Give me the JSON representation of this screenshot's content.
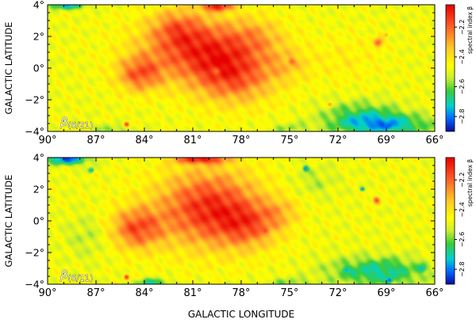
{
  "chart_data": [
    {
      "type": "heatmap",
      "panel_label": "β",
      "panel_label_sub": "(6/21)",
      "xlabel": "",
      "ylabel": "GALACTIC LATITUDE",
      "xlim": [
        90,
        66
      ],
      "ylim": [
        -4,
        4
      ],
      "x_ticks": [
        90,
        87,
        84,
        81,
        78,
        75,
        72,
        69,
        66
      ],
      "y_ticks": [
        4,
        2,
        0,
        -2,
        -4
      ],
      "x_tick_labels": [
        "90°",
        "87°",
        "84°",
        "81°",
        "78°",
        "75°",
        "72°",
        "69°",
        "66°"
      ],
      "y_tick_labels": [
        "4°",
        "2°",
        "0°",
        "−2°",
        "−4°"
      ],
      "colorbar": {
        "label": "spectral index β",
        "range": [
          -2.9,
          -2.05
        ],
        "ticks": [
          -2.2,
          -2.4,
          -2.6,
          -2.8
        ],
        "tick_labels": [
          "−2.2",
          "−2.4",
          "−2.6",
          "−2.8"
        ]
      },
      "blobs": [
        {
          "l": 80.5,
          "b": 1.2,
          "sl": 3.6,
          "sb": 1.9,
          "a": 0.38
        },
        {
          "l": 78.5,
          "b": -0.6,
          "sl": 2.6,
          "sb": 1.7,
          "a": 0.3
        },
        {
          "l": 84.3,
          "b": -0.4,
          "sl": 1.4,
          "sb": 1.1,
          "a": 0.3
        },
        {
          "l": 82.0,
          "b": 2.6,
          "sl": 1.6,
          "sb": 1.2,
          "a": 0.18
        },
        {
          "l": 77.0,
          "b": 2.0,
          "sl": 1.8,
          "sb": 1.2,
          "a": 0.12
        },
        {
          "l": 75.0,
          "b": 0.2,
          "sl": 1.4,
          "sb": 1.0,
          "a": 0.1
        },
        {
          "l": 79.5,
          "b": 3.9,
          "sl": 1.0,
          "sb": 0.3,
          "a": 0.4
        },
        {
          "l": 71.5,
          "b": 0.6,
          "sl": 2.2,
          "sb": 1.6,
          "a": 0.06
        },
        {
          "l": 69.2,
          "b": -3.6,
          "sl": 3.0,
          "sb": 0.7,
          "a": -0.3
        },
        {
          "l": 70.5,
          "b": -2.9,
          "sl": 2.4,
          "sb": 0.9,
          "a": -0.16
        },
        {
          "l": 88.8,
          "b": 3.95,
          "sl": 1.2,
          "sb": 0.25,
          "a": -0.3
        },
        {
          "l": 86.0,
          "b": -3.9,
          "sl": 1.2,
          "sb": 0.3,
          "a": -0.12
        },
        {
          "l": 75.0,
          "b": -3.8,
          "sl": 1.2,
          "sb": 0.3,
          "a": -0.1
        }
      ],
      "spots": [
        {
          "l": 69.5,
          "b": 1.6,
          "r": 0.35,
          "v": -2.15
        },
        {
          "l": 85.1,
          "b": -3.55,
          "r": 0.2,
          "v": -2.12
        },
        {
          "l": 74.9,
          "b": 0.4,
          "r": 0.25,
          "v": -2.2
        },
        {
          "l": 79.5,
          "b": -0.2,
          "r": 0.25,
          "v": -2.18
        },
        {
          "l": 68.8,
          "b": -3.65,
          "r": 0.22,
          "v": -2.86
        },
        {
          "l": 72.5,
          "b": -2.3,
          "r": 0.15,
          "v": -2.22
        },
        {
          "l": 69.0,
          "b": 2.1,
          "r": 0.15,
          "v": -2.28
        }
      ]
    },
    {
      "type": "heatmap",
      "panel_label": "β",
      "panel_label_sub": "(6/11)",
      "xlabel": "GALACTIC LONGITUDE",
      "ylabel": "GALACTIC LATITUDE",
      "xlim": [
        90,
        66
      ],
      "ylim": [
        -4,
        4
      ],
      "x_ticks": [
        90,
        87,
        84,
        81,
        78,
        75,
        72,
        69,
        66
      ],
      "y_ticks": [
        4,
        2,
        0,
        -2,
        -4
      ],
      "x_tick_labels": [
        "90°",
        "87°",
        "84°",
        "81°",
        "78°",
        "75°",
        "72°",
        "69°",
        "66°"
      ],
      "y_tick_labels": [
        "4°",
        "2°",
        "0°",
        "−2°",
        "−4°"
      ],
      "colorbar": {
        "label": "spectral index β",
        "range": [
          -2.9,
          -2.05
        ],
        "ticks": [
          -2.2,
          -2.4,
          -2.6,
          -2.8
        ],
        "tick_labels": [
          "−2.2",
          "−2.4",
          "−2.6",
          "−2.8"
        ]
      },
      "blobs": [
        {
          "l": 80.0,
          "b": 0.8,
          "sl": 3.2,
          "sb": 2.4,
          "a": 0.42
        },
        {
          "l": 84.5,
          "b": -0.5,
          "sl": 1.6,
          "sb": 1.3,
          "a": 0.33
        },
        {
          "l": 77.5,
          "b": -0.3,
          "sl": 1.8,
          "sb": 1.4,
          "a": 0.22
        },
        {
          "l": 80.5,
          "b": 3.9,
          "sl": 1.6,
          "sb": 0.3,
          "a": 0.4
        },
        {
          "l": 75.5,
          "b": 0.5,
          "sl": 1.2,
          "sb": 1.0,
          "a": 0.12
        },
        {
          "l": 69.5,
          "b": -3.2,
          "sl": 3.0,
          "sb": 0.9,
          "a": -0.26
        },
        {
          "l": 88.8,
          "b": 3.9,
          "sl": 1.3,
          "sb": 0.35,
          "a": -0.4
        },
        {
          "l": 87.5,
          "b": -1.0,
          "sl": 1.4,
          "sb": 1.4,
          "a": -0.08
        },
        {
          "l": 73.5,
          "b": 2.5,
          "sl": 1.4,
          "sb": 1.0,
          "a": -0.08
        },
        {
          "l": 83.5,
          "b": -3.9,
          "sl": 1.0,
          "sb": 0.25,
          "a": -0.25
        },
        {
          "l": 75.0,
          "b": -3.9,
          "sl": 1.5,
          "sb": 0.3,
          "a": -0.12
        }
      ],
      "spots": [
        {
          "l": 69.6,
          "b": 1.3,
          "r": 0.3,
          "v": -2.15
        },
        {
          "l": 85.1,
          "b": -3.55,
          "r": 0.2,
          "v": -2.12
        },
        {
          "l": 74.0,
          "b": 3.3,
          "r": 0.2,
          "v": -2.8
        },
        {
          "l": 87.3,
          "b": 3.2,
          "r": 0.2,
          "v": -2.78
        },
        {
          "l": 76.5,
          "b": -0.6,
          "r": 0.2,
          "v": -2.2
        },
        {
          "l": 68.8,
          "b": -3.75,
          "r": 0.2,
          "v": -2.88
        },
        {
          "l": 66.8,
          "b": -3.0,
          "r": 0.25,
          "v": -2.76
        },
        {
          "l": 71.5,
          "b": -3.1,
          "r": 0.2,
          "v": -2.78
        },
        {
          "l": 70.5,
          "b": 2.0,
          "r": 0.15,
          "v": -2.8
        }
      ]
    }
  ]
}
